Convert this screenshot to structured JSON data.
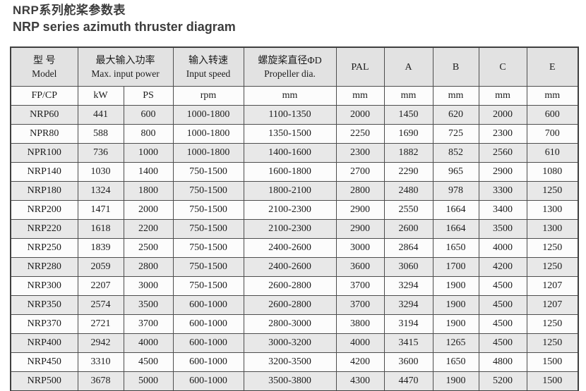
{
  "title": {
    "zh": "NRP系列舵桨参数表",
    "en": "NRP series azimuth thruster diagram"
  },
  "table": {
    "header": {
      "model": {
        "zh": "型  号",
        "en": "Model"
      },
      "max_input_power": {
        "zh": "最大输入功率",
        "en": "Max. input power"
      },
      "input_speed": {
        "zh": "输入转速",
        "en": "Input speed"
      },
      "propeller_dia": {
        "zh": "螺旋桨直径ΦD",
        "en": "Propeller dia."
      },
      "pal": "PAL",
      "a": "A",
      "b": "B",
      "c": "C",
      "e": "E"
    },
    "units": [
      "FP/CP",
      "kW",
      "PS",
      "rpm",
      "mm",
      "mm",
      "mm",
      "mm",
      "mm",
      "mm"
    ],
    "rows": [
      [
        "NRP60",
        "441",
        "600",
        "1000-1800",
        "1100-1350",
        "2000",
        "1450",
        "620",
        "2000",
        "600"
      ],
      [
        "NPR80",
        "588",
        "800",
        "1000-1800",
        "1350-1500",
        "2250",
        "1690",
        "725",
        "2300",
        "700"
      ],
      [
        "NPR100",
        "736",
        "1000",
        "1000-1800",
        "1400-1600",
        "2300",
        "1882",
        "852",
        "2560",
        "610"
      ],
      [
        "NRP140",
        "1030",
        "1400",
        "750-1500",
        "1600-1800",
        "2700",
        "2290",
        "965",
        "2900",
        "1080"
      ],
      [
        "NRP180",
        "1324",
        "1800",
        "750-1500",
        "1800-2100",
        "2800",
        "2480",
        "978",
        "3300",
        "1250"
      ],
      [
        "NRP200",
        "1471",
        "2000",
        "750-1500",
        "2100-2300",
        "2900",
        "2550",
        "1664",
        "3400",
        "1300"
      ],
      [
        "NRP220",
        "1618",
        "2200",
        "750-1500",
        "2100-2300",
        "2900",
        "2600",
        "1664",
        "3500",
        "1300"
      ],
      [
        "NRP250",
        "1839",
        "2500",
        "750-1500",
        "2400-2600",
        "3000",
        "2864",
        "1650",
        "4000",
        "1250"
      ],
      [
        "NRP280",
        "2059",
        "2800",
        "750-1500",
        "2400-2600",
        "3600",
        "3060",
        "1700",
        "4200",
        "1250"
      ],
      [
        "NRP300",
        "2207",
        "3000",
        "750-1500",
        "2600-2800",
        "3700",
        "3294",
        "1900",
        "4500",
        "1207"
      ],
      [
        "NRP350",
        "2574",
        "3500",
        "600-1000",
        "2600-2800",
        "3700",
        "3294",
        "1900",
        "4500",
        "1207"
      ],
      [
        "NRP370",
        "2721",
        "3700",
        "600-1000",
        "2800-3000",
        "3800",
        "3194",
        "1900",
        "4500",
        "1250"
      ],
      [
        "NRP400",
        "2942",
        "4000",
        "600-1000",
        "3000-3200",
        "4000",
        "3415",
        "1265",
        "4500",
        "1250"
      ],
      [
        "NRP450",
        "3310",
        "4500",
        "600-1000",
        "3200-3500",
        "4200",
        "3600",
        "1650",
        "4800",
        "1500"
      ],
      [
        "NRP500",
        "3678",
        "5000",
        "600-1000",
        "3500-3800",
        "4300",
        "4470",
        "1900",
        "5200",
        "1500"
      ]
    ]
  },
  "colors": {
    "header_fill": "#e2e2e2",
    "row_alt_fill": "#e8e8e8",
    "row_fill": "#fcfcfc",
    "border": "#4d4d4d",
    "title_text": "#3d3d3d",
    "cell_text": "#1c1c1c"
  }
}
